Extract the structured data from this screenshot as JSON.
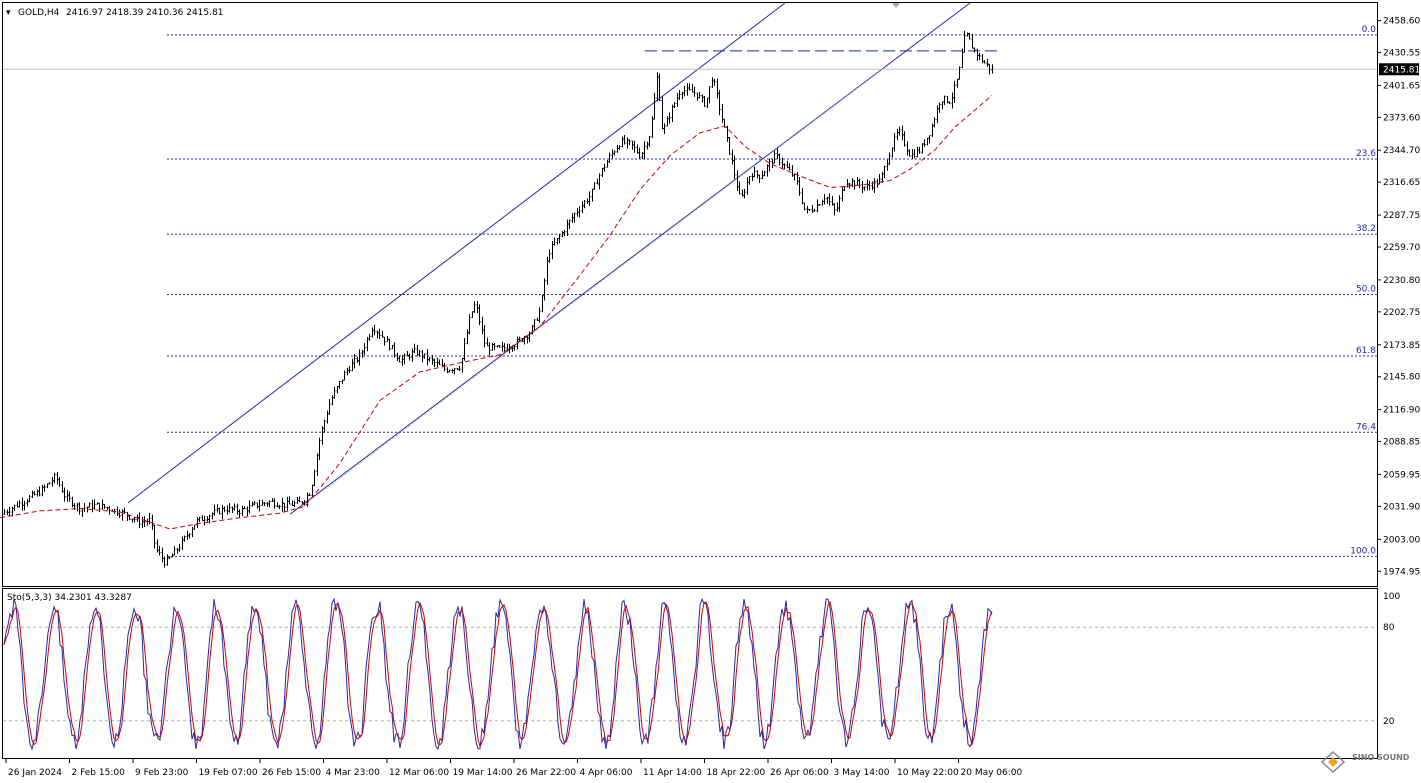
{
  "header": {
    "symbol": "GOLD,H4",
    "ohlc": "2416.97 2418.39 2410.36 2415.81",
    "stoch_label": "Sto(5,3,3) 34.2301 43.3287"
  },
  "price_axis": {
    "labels": [
      "2458.60",
      "2430.55",
      "2401.65",
      "2373.60",
      "2344.70",
      "2316.65",
      "2287.75",
      "2259.70",
      "2230.80",
      "2202.75",
      "2173.85",
      "2145.80",
      "2116.90",
      "2088.85",
      "2059.95",
      "2031.90",
      "2003.00",
      "1974.95"
    ],
    "current_price": "2415.81",
    "ymin": 1962,
    "ymax": 2474
  },
  "stoch_axis": {
    "labels": [
      "100",
      "80",
      "20"
    ]
  },
  "time_axis": {
    "labels": [
      "26 Jan 2024",
      "2 Feb 15:00",
      "9 Feb 23:00",
      "19 Feb 07:00",
      "26 Feb 15:00",
      "4 Mar 23:00",
      "12 Mar 06:00",
      "19 Mar 14:00",
      "26 Mar 22:00",
      "4 Apr 06:00",
      "11 Apr 14:00",
      "18 Apr 22:00",
      "26 Apr 06:00",
      "3 May 14:00",
      "10 May 22:00",
      "20 May 06:00"
    ]
  },
  "watermark": {
    "text": "SINO SOUND"
  },
  "colors": {
    "bars": "#000000",
    "ma": "#cc0000",
    "channel": "#1f2aa8",
    "fib": "#1f2aa8",
    "stoch_main": "#1f2aa8",
    "stoch_signal": "#cc0000",
    "price_tag_bg": "#000000"
  },
  "chart_data": {
    "type": "ohlc",
    "title": "GOLD,H4",
    "ylim": [
      1962,
      2474
    ],
    "anchors": [
      [
        0,
        2025
      ],
      [
        20,
        2035
      ],
      [
        40,
        2045
      ],
      [
        55,
        2058
      ],
      [
        65,
        2040
      ],
      [
        80,
        2030
      ],
      [
        95,
        2033
      ],
      [
        110,
        2030
      ],
      [
        125,
        2025
      ],
      [
        140,
        2018
      ],
      [
        150,
        2020
      ],
      [
        155,
        1995
      ],
      [
        165,
        1982
      ],
      [
        180,
        1998
      ],
      [
        195,
        2018
      ],
      [
        210,
        2025
      ],
      [
        225,
        2030
      ],
      [
        240,
        2028
      ],
      [
        255,
        2033
      ],
      [
        270,
        2036
      ],
      [
        285,
        2033
      ],
      [
        300,
        2035
      ],
      [
        310,
        2045
      ],
      [
        320,
        2095
      ],
      [
        330,
        2125
      ],
      [
        345,
        2150
      ],
      [
        360,
        2165
      ],
      [
        372,
        2190
      ],
      [
        385,
        2178
      ],
      [
        400,
        2160
      ],
      [
        415,
        2168
      ],
      [
        430,
        2160
      ],
      [
        445,
        2152
      ],
      [
        460,
        2155
      ],
      [
        470,
        2200
      ],
      [
        475,
        2210
      ],
      [
        485,
        2172
      ],
      [
        500,
        2170
      ],
      [
        515,
        2175
      ],
      [
        530,
        2185
      ],
      [
        540,
        2205
      ],
      [
        548,
        2255
      ],
      [
        560,
        2270
      ],
      [
        575,
        2290
      ],
      [
        590,
        2305
      ],
      [
        600,
        2325
      ],
      [
        610,
        2340
      ],
      [
        620,
        2352
      ],
      [
        630,
        2350
      ],
      [
        640,
        2340
      ],
      [
        650,
        2360
      ],
      [
        657,
        2412
      ],
      [
        662,
        2360
      ],
      [
        670,
        2378
      ],
      [
        680,
        2398
      ],
      [
        695,
        2395
      ],
      [
        705,
        2385
      ],
      [
        712,
        2410
      ],
      [
        720,
        2378
      ],
      [
        730,
        2340
      ],
      [
        740,
        2300
      ],
      [
        750,
        2325
      ],
      [
        760,
        2322
      ],
      [
        775,
        2340
      ],
      [
        785,
        2330
      ],
      [
        795,
        2320
      ],
      [
        805,
        2290
      ],
      [
        815,
        2295
      ],
      [
        825,
        2305
      ],
      [
        835,
        2290
      ],
      [
        845,
        2318
      ],
      [
        855,
        2316
      ],
      [
        865,
        2312
      ],
      [
        880,
        2318
      ],
      [
        890,
        2345
      ],
      [
        898,
        2362
      ],
      [
        910,
        2340
      ],
      [
        920,
        2345
      ],
      [
        930,
        2362
      ],
      [
        940,
        2390
      ],
      [
        950,
        2388
      ],
      [
        958,
        2410
      ],
      [
        965,
        2448
      ],
      [
        972,
        2435
      ],
      [
        980,
        2425
      ],
      [
        990,
        2416
      ]
    ],
    "moving_average_anchors": [
      [
        0,
        2022
      ],
      [
        40,
        2028
      ],
      [
        80,
        2030
      ],
      [
        120,
        2027
      ],
      [
        150,
        2018
      ],
      [
        170,
        2012
      ],
      [
        200,
        2017
      ],
      [
        240,
        2022
      ],
      [
        280,
        2026
      ],
      [
        305,
        2032
      ],
      [
        340,
        2070
      ],
      [
        380,
        2125
      ],
      [
        420,
        2150
      ],
      [
        460,
        2158
      ],
      [
        500,
        2165
      ],
      [
        540,
        2190
      ],
      [
        580,
        2235
      ],
      [
        610,
        2270
      ],
      [
        640,
        2310
      ],
      [
        670,
        2340
      ],
      [
        700,
        2360
      ],
      [
        725,
        2366
      ],
      [
        745,
        2348
      ],
      [
        770,
        2333
      ],
      [
        800,
        2322
      ],
      [
        830,
        2312
      ],
      [
        860,
        2314
      ],
      [
        890,
        2318
      ],
      [
        910,
        2328
      ],
      [
        935,
        2345
      ],
      [
        955,
        2365
      ],
      [
        975,
        2380
      ],
      [
        992,
        2393
      ]
    ],
    "fibonacci": [
      {
        "level": "0.0",
        "price": 2446
      },
      {
        "level": "23.6",
        "price": 2337
      },
      {
        "level": "38.2",
        "price": 2271
      },
      {
        "level": "50.0",
        "price": 2218
      },
      {
        "level": "61.8",
        "price": 2164
      },
      {
        "level": "76.4",
        "price": 2097
      },
      {
        "level": "100.0",
        "price": 1988
      }
    ],
    "channel": {
      "upper": [
        [
          128,
          2035
        ],
        [
          785,
          2474
        ]
      ],
      "lower": [
        [
          290,
          2025
        ],
        [
          970,
          2474
        ]
      ],
      "resistance": {
        "price": 2432,
        "x_from": 645,
        "x_to": 1000
      }
    },
    "stochastic": {
      "levels": [
        80,
        20
      ],
      "ylim": [
        0,
        100
      ]
    }
  }
}
